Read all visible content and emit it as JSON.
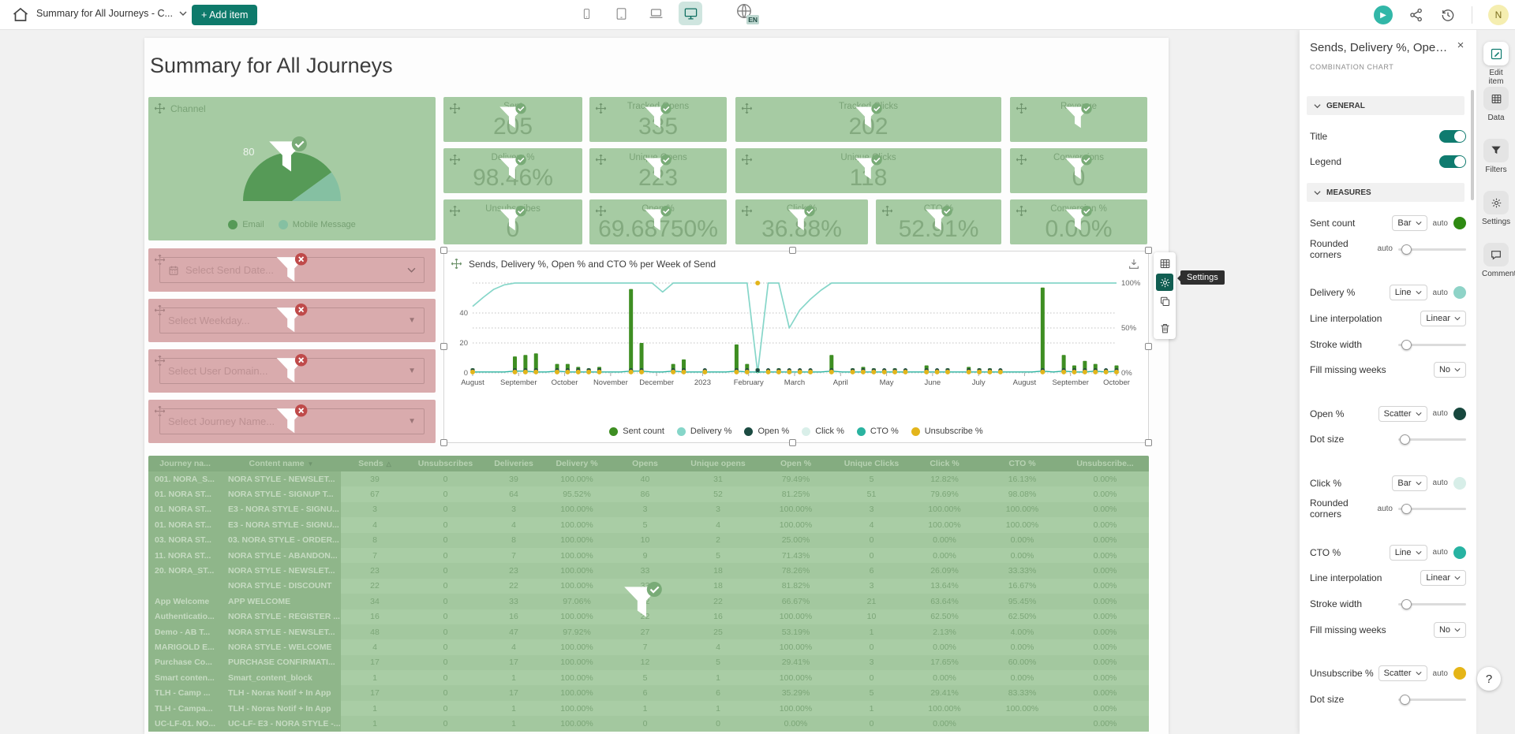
{
  "topbar": {
    "doc_title": "Summary for All Journeys - C...",
    "add_item_label": "+ Add item",
    "language_badge": "EN",
    "avatar_initial": "N"
  },
  "canvas": {
    "page_title": "Summary for All Journeys",
    "channel": {
      "title": "Channel",
      "gauge_label": "80",
      "email_share": 0.8,
      "legend": [
        {
          "label": "Email",
          "color": "#569a57"
        },
        {
          "label": "Mobile Message",
          "color": "#85c0a2"
        }
      ]
    },
    "kpis": [
      {
        "label": "Sent",
        "value": "205"
      },
      {
        "label": "Tracked Opens",
        "value": "335"
      },
      {
        "label": "Tracked Clicks",
        "value": "202"
      },
      {
        "label": "Revenue",
        "value": ""
      },
      {
        "label": "Delivery %",
        "value": "98.46%"
      },
      {
        "label": "Unique Opens",
        "value": "223"
      },
      {
        "label": "Unique Clicks",
        "value": "118"
      },
      {
        "label": "Conversions",
        "value": "0"
      },
      {
        "label": "Unsubscribes",
        "value": "0"
      },
      {
        "label": "Open %",
        "value": "69.68750%"
      },
      {
        "label": "Click %",
        "value": "36.88%"
      },
      {
        "label": "CTO %",
        "value": "52.91%"
      },
      {
        "label": "Conversion %",
        "value": "0.00%"
      }
    ],
    "slicers": [
      {
        "placeholder": "Select Send Date...",
        "icon": "calendar",
        "caret": "chevron"
      },
      {
        "placeholder": "Select Weekday...",
        "icon": "",
        "caret": "triangle"
      },
      {
        "placeholder": "Select User Domain...",
        "icon": "",
        "caret": "triangle"
      },
      {
        "placeholder": "Select Journey Name...",
        "icon": "",
        "caret": "triangle"
      }
    ],
    "chart_title": "Sends, Delivery %, Open % and CTO % per Week of Send",
    "float_toolbar_tooltip": "Settings",
    "table": {
      "columns": [
        "Journey na...",
        "Content name",
        "Sends",
        "Unsubscribes",
        "Deliveries",
        "Delivery %",
        "Opens",
        "Unique opens",
        "Open %",
        "Unique Clicks",
        "Click %",
        "CTO %",
        "Unsubscribe..."
      ],
      "sort": {
        "content_name": "desc",
        "sends": "asc"
      },
      "rows": [
        [
          "001. NORA_S...",
          "NORA STYLE - NEWSLET...",
          "39",
          "0",
          "39",
          "100.00%",
          "40",
          "31",
          "79.49%",
          "5",
          "12.82%",
          "16.13%",
          "0.00%"
        ],
        [
          "01. NORA ST...",
          "NORA STYLE - SIGNUP T...",
          "67",
          "0",
          "64",
          "95.52%",
          "86",
          "52",
          "81.25%",
          "51",
          "79.69%",
          "98.08%",
          "0.00%"
        ],
        [
          "01. NORA ST...",
          "E3 - NORA STYLE - SIGNU...",
          "3",
          "0",
          "3",
          "100.00%",
          "3",
          "3",
          "100.00%",
          "3",
          "100.00%",
          "100.00%",
          "0.00%"
        ],
        [
          "01. NORA ST...",
          "E3 - NORA STYLE - SIGNU...",
          "4",
          "0",
          "4",
          "100.00%",
          "5",
          "4",
          "100.00%",
          "4",
          "100.00%",
          "100.00%",
          "0.00%"
        ],
        [
          "03. NORA ST...",
          "03. NORA STYLE - ORDER...",
          "8",
          "0",
          "8",
          "100.00%",
          "10",
          "2",
          "25.00%",
          "0",
          "0.00%",
          "0.00%",
          "0.00%"
        ],
        [
          "11. NORA ST...",
          "NORA STYLE - ABANDON...",
          "7",
          "0",
          "7",
          "100.00%",
          "9",
          "5",
          "71.43%",
          "0",
          "0.00%",
          "0.00%",
          "0.00%"
        ],
        [
          "20. NORA_ST...",
          "NORA STYLE - NEWSLET...",
          "23",
          "0",
          "23",
          "100.00%",
          "33",
          "18",
          "78.26%",
          "6",
          "26.09%",
          "33.33%",
          "0.00%"
        ],
        [
          "",
          "NORA STYLE - DISCOUNT",
          "22",
          "0",
          "22",
          "100.00%",
          "33",
          "18",
          "81.82%",
          "3",
          "13.64%",
          "16.67%",
          "0.00%"
        ],
        [
          "App Welcome",
          "APP WELCOME",
          "34",
          "0",
          "33",
          "97.06%",
          "22",
          "22",
          "66.67%",
          "21",
          "63.64%",
          "95.45%",
          "0.00%"
        ],
        [
          "Authenticatio...",
          "NORA STYLE - REGISTER ...",
          "16",
          "0",
          "16",
          "100.00%",
          "22",
          "16",
          "100.00%",
          "10",
          "62.50%",
          "62.50%",
          "0.00%"
        ],
        [
          "Demo - AB T...",
          "NORA STYLE - NEWSLET...",
          "48",
          "0",
          "47",
          "97.92%",
          "27",
          "25",
          "53.19%",
          "1",
          "2.13%",
          "4.00%",
          "0.00%"
        ],
        [
          "MARIGOLD E...",
          "NORA STYLE - WELCOME",
          "4",
          "0",
          "4",
          "100.00%",
          "7",
          "4",
          "100.00%",
          "0",
          "0.00%",
          "0.00%",
          "0.00%"
        ],
        [
          "Purchase Co...",
          "PURCHASE CONFIRMATI...",
          "17",
          "0",
          "17",
          "100.00%",
          "12",
          "5",
          "29.41%",
          "3",
          "17.65%",
          "60.00%",
          "0.00%"
        ],
        [
          "Smart conten...",
          "Smart_content_block",
          "1",
          "0",
          "1",
          "100.00%",
          "5",
          "1",
          "100.00%",
          "0",
          "0.00%",
          "0.00%",
          "0.00%"
        ],
        [
          "TLH - Camp ...",
          "TLH - Noras Notif + In App",
          "17",
          "0",
          "17",
          "100.00%",
          "6",
          "6",
          "35.29%",
          "5",
          "29.41%",
          "83.33%",
          "0.00%"
        ],
        [
          "TLH - Campa...",
          "TLH - Noras Notif + In App",
          "1",
          "0",
          "1",
          "100.00%",
          "1",
          "1",
          "100.00%",
          "1",
          "100.00%",
          "100.00%",
          "0.00%"
        ],
        [
          "UC-LF-01. NO...",
          "UC-LF- E3 - NORA STYLE -...",
          "1",
          "0",
          "1",
          "100.00%",
          "0",
          "0",
          "0.00%",
          "0",
          "0.00%",
          "",
          "0.00%"
        ]
      ]
    }
  },
  "panel": {
    "title": "Sends, Delivery %, Open % a...",
    "subtitle": "COMBINATION CHART",
    "general": {
      "label": "GENERAL",
      "toggles": [
        {
          "label": "Title",
          "on": true
        },
        {
          "label": "Legend",
          "on": true
        }
      ]
    },
    "measures": {
      "label": "MEASURES",
      "rows": [
        {
          "label": "Sent count",
          "type": "dropdown",
          "value": "Bar",
          "auto": "auto",
          "swatch": "#2e8a12",
          "group": 0
        },
        {
          "label": "Rounded corners",
          "type": "slider",
          "auto": "auto",
          "pos": 0.06,
          "group": 0
        },
        {
          "label": "Delivery %",
          "type": "dropdown",
          "value": "Line",
          "auto": "auto",
          "swatch": "#8ed3c7",
          "group": 1
        },
        {
          "label": "Line interpolation",
          "type": "dropdown2",
          "value": "Linear",
          "group": 1
        },
        {
          "label": "Stroke width",
          "type": "slider",
          "auto": "",
          "pos": 0.05,
          "group": 1
        },
        {
          "label": "Fill missing weeks",
          "type": "dropdown2",
          "value": "No",
          "group": 1
        },
        {
          "label": "Open %",
          "type": "dropdown",
          "value": "Scatter",
          "auto": "auto",
          "swatch": "#17473e",
          "group": 2
        },
        {
          "label": "Dot size",
          "type": "slider",
          "auto": "",
          "pos": 0.03,
          "group": 2
        },
        {
          "label": "Click %",
          "type": "dropdown",
          "value": "Bar",
          "auto": "auto",
          "swatch": "#d7eee8",
          "group": 3
        },
        {
          "label": "Rounded corners",
          "type": "slider",
          "auto": "auto",
          "pos": 0.06,
          "group": 3
        },
        {
          "label": "CTO %",
          "type": "dropdown",
          "value": "Line",
          "auto": "auto",
          "swatch": "#27b3a2",
          "group": 4
        },
        {
          "label": "Line interpolation",
          "type": "dropdown2",
          "value": "Linear",
          "group": 4
        },
        {
          "label": "Stroke width",
          "type": "slider",
          "auto": "",
          "pos": 0.05,
          "group": 4
        },
        {
          "label": "Fill missing weeks",
          "type": "dropdown2",
          "value": "No",
          "group": 4
        },
        {
          "label": "Unsubscribe %",
          "type": "dropdown",
          "value": "Scatter",
          "auto": "auto",
          "swatch": "#e5b517",
          "group": 5
        },
        {
          "label": "Dot size",
          "type": "slider",
          "auto": "",
          "pos": 0.03,
          "group": 5
        }
      ]
    }
  },
  "rail": {
    "items": [
      {
        "label": "Edit item",
        "icon": "pencil-square",
        "active": true
      },
      {
        "label": "Data",
        "icon": "grid",
        "active": false
      },
      {
        "label": "Filters",
        "icon": "funnel",
        "active": false
      },
      {
        "label": "Settings",
        "icon": "gear",
        "active": false
      },
      {
        "label": "Comments",
        "icon": "bubble",
        "active": false
      }
    ],
    "help_label": "?"
  },
  "chart_data": {
    "type": "combination",
    "title": "Sends, Delivery %, Open % and CTO % per Week of Send",
    "x_unit": "week of send",
    "weeks": 62,
    "month_labels": [
      "August",
      "September",
      "October",
      "November",
      "December",
      "2023",
      "February",
      "March",
      "April",
      "May",
      "June",
      "July",
      "August",
      "September",
      "October"
    ],
    "y_left": {
      "ticks": [
        0,
        20,
        40
      ],
      "max": 60
    },
    "y_right": {
      "ticks": [
        "0%",
        "50%",
        "100%"
      ],
      "values": [
        0,
        50,
        100
      ],
      "max": 100
    },
    "legend_position": "bottom",
    "grid": true,
    "series": [
      {
        "name": "Sent count",
        "type": "bar",
        "axis": "left",
        "color": "#3e8e22",
        "values": [
          3,
          0,
          0,
          0,
          11,
          12,
          13,
          0,
          6,
          6,
          4,
          3,
          4,
          0,
          0,
          56,
          20,
          0,
          0,
          6,
          9,
          0,
          2,
          0,
          0,
          19,
          6,
          3,
          1,
          3,
          1,
          1,
          2,
          0,
          12,
          0,
          3,
          4,
          3,
          2,
          3,
          2,
          0,
          5,
          2,
          3,
          0,
          4,
          3,
          3,
          2,
          0,
          0,
          0,
          57,
          0,
          12,
          5,
          8,
          6,
          2,
          5
        ]
      },
      {
        "name": "Delivery %",
        "type": "line",
        "axis": "right",
        "color": "#86d6c9",
        "values": [
          74,
          84,
          93,
          98,
          100,
          100,
          100,
          100,
          100,
          100,
          100,
          100,
          100,
          100,
          100,
          100,
          100,
          100,
          90,
          100,
          100,
          100,
          100,
          100,
          100,
          100,
          100,
          0,
          100,
          100,
          50,
          70,
          82,
          92,
          100,
          100,
          100,
          100,
          100,
          100,
          100,
          100,
          100,
          100,
          100,
          100,
          100,
          100,
          100,
          100,
          100,
          100,
          100,
          100,
          100,
          100,
          100,
          100,
          100,
          100,
          100,
          100
        ]
      },
      {
        "name": "Open %",
        "type": "scatter",
        "axis": "right",
        "color": "#1c4b42",
        "values": [
          3,
          null,
          null,
          null,
          3,
          3,
          3,
          null,
          3,
          3,
          3,
          3,
          3,
          null,
          null,
          3,
          3,
          null,
          null,
          3,
          3,
          null,
          3,
          null,
          null,
          3,
          3,
          3,
          3,
          3,
          3,
          3,
          3,
          null,
          3,
          null,
          3,
          3,
          3,
          3,
          3,
          3,
          null,
          3,
          3,
          3,
          null,
          3,
          3,
          3,
          3,
          null,
          null,
          null,
          3,
          null,
          3,
          3,
          3,
          3,
          3,
          3
        ]
      },
      {
        "name": "Click %",
        "type": "bar",
        "axis": "right",
        "color": "#d9efe9",
        "values": [
          2,
          0,
          0,
          0,
          2,
          2,
          2,
          0,
          2,
          2,
          2,
          2,
          2,
          0,
          0,
          2,
          2,
          0,
          0,
          2,
          2,
          0,
          2,
          0,
          0,
          2,
          2,
          2,
          2,
          2,
          2,
          2,
          2,
          0,
          2,
          0,
          2,
          2,
          2,
          2,
          2,
          2,
          0,
          2,
          2,
          2,
          0,
          2,
          2,
          2,
          2,
          0,
          0,
          0,
          2,
          0,
          2,
          2,
          2,
          2,
          2,
          2
        ]
      },
      {
        "name": "CTO %",
        "type": "line",
        "axis": "right",
        "color": "#2ab3a0",
        "values": [
          1,
          1,
          1,
          1,
          2,
          2,
          1,
          1,
          2,
          1,
          1,
          1,
          1,
          1,
          1,
          2,
          2,
          1,
          1,
          2,
          1,
          1,
          1,
          1,
          1,
          2,
          1,
          1,
          1,
          1,
          1,
          1,
          1,
          1,
          2,
          1,
          1,
          1,
          1,
          1,
          1,
          1,
          1,
          1,
          1,
          1,
          1,
          1,
          1,
          1,
          1,
          1,
          1,
          1,
          2,
          1,
          2,
          1,
          1,
          2,
          1,
          2
        ]
      },
      {
        "name": "Unsubscribe %",
        "type": "scatter",
        "axis": "right",
        "color": "#e3b51b",
        "values": [
          1,
          null,
          null,
          null,
          1,
          1,
          1,
          null,
          1,
          1,
          1,
          1,
          1,
          null,
          null,
          1,
          1,
          null,
          null,
          1,
          1,
          null,
          1,
          null,
          null,
          1,
          1,
          100,
          1,
          1,
          1,
          1,
          1,
          null,
          1,
          null,
          1,
          1,
          1,
          1,
          1,
          1,
          null,
          1,
          1,
          1,
          null,
          1,
          1,
          1,
          1,
          null,
          null,
          null,
          1,
          null,
          1,
          1,
          1,
          1,
          1,
          1
        ]
      }
    ]
  }
}
